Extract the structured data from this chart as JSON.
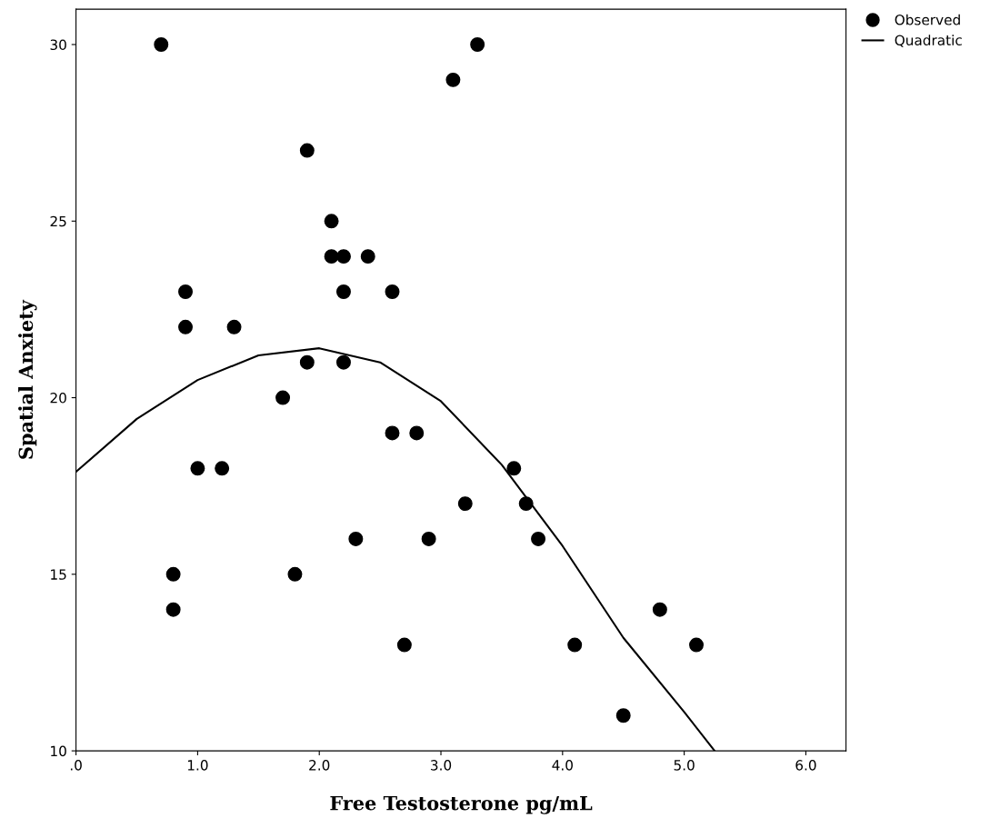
{
  "chart_data": {
    "type": "scatter",
    "xlabel": "Free Testosterone pg/mL",
    "ylabel": "Spatial Anxiety",
    "xlim": [
      0,
      6.33
    ],
    "ylim": [
      10,
      31
    ],
    "xticks": [
      {
        "value": 0,
        "label": ".0"
      },
      {
        "value": 1,
        "label": "1.0"
      },
      {
        "value": 2,
        "label": "2.0"
      },
      {
        "value": 3,
        "label": "3.0"
      },
      {
        "value": 4,
        "label": "4.0"
      },
      {
        "value": 5,
        "label": "5.0"
      },
      {
        "value": 6,
        "label": "6.0"
      }
    ],
    "yticks": [
      10,
      15,
      20,
      25,
      30
    ],
    "grid": false,
    "legend": "top right",
    "series": [
      {
        "name": "Observed",
        "color": "#000000",
        "marker": "circle",
        "x": [
          0.7,
          3.1,
          3.3,
          1.9,
          2.1,
          2.1,
          2.2,
          2.4,
          0.9,
          2.2,
          2.6,
          0.9,
          1.3,
          1.9,
          2.2,
          1.7,
          2.6,
          2.8,
          1.0,
          1.2,
          3.6,
          3.2,
          3.7,
          2.3,
          2.9,
          3.8,
          0.8,
          1.8,
          0.8,
          4.8,
          2.7,
          4.1,
          5.1,
          4.5
        ],
        "values": [
          30,
          29,
          30,
          27,
          25,
          24,
          24,
          24,
          23,
          23,
          23,
          22,
          22,
          21,
          21,
          20,
          19,
          19,
          18,
          18,
          18,
          17,
          17,
          16,
          16,
          16,
          15,
          15,
          14,
          14,
          13,
          13,
          13,
          11
        ]
      },
      {
        "name": "Quadratic",
        "type": "line",
        "color": "#000000",
        "line_style": "solid",
        "x": [
          0,
          0.5,
          1.0,
          1.5,
          2.0,
          2.5,
          3.0,
          3.5,
          4.0,
          4.5,
          5.0,
          5.25
        ],
        "values": [
          17.9,
          19.4,
          20.5,
          21.2,
          21.4,
          21.0,
          19.9,
          18.1,
          15.8,
          13.2,
          11.1,
          10.0
        ]
      }
    ]
  }
}
